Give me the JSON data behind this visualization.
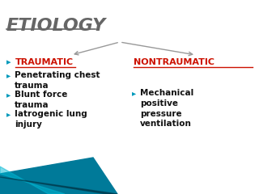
{
  "title": "ETIOLOGY",
  "title_color": "#666666",
  "title_fontsize": 16,
  "bg_color": "#ffffff",
  "traumatic_label": "TRAUMATIC",
  "traumatic_color": "#cc1100",
  "nontraumatic_label": "NONTRAUMATIC",
  "nontraumatic_color": "#cc1100",
  "traumatic_items": [
    "Penetrating chest\ntrauma",
    "Blunt force\ntrauma",
    "Iatrogenic lung\ninjury"
  ],
  "nontraumatic_items": [
    "Mechanical\npositive\npressure\nventilation"
  ],
  "items_color": "#111111",
  "bullet_color": "#0099bb",
  "bullet": "▸",
  "arrow_color": "#999999",
  "teal_color1": "#007a99",
  "teal_color2": "#00b8d4"
}
